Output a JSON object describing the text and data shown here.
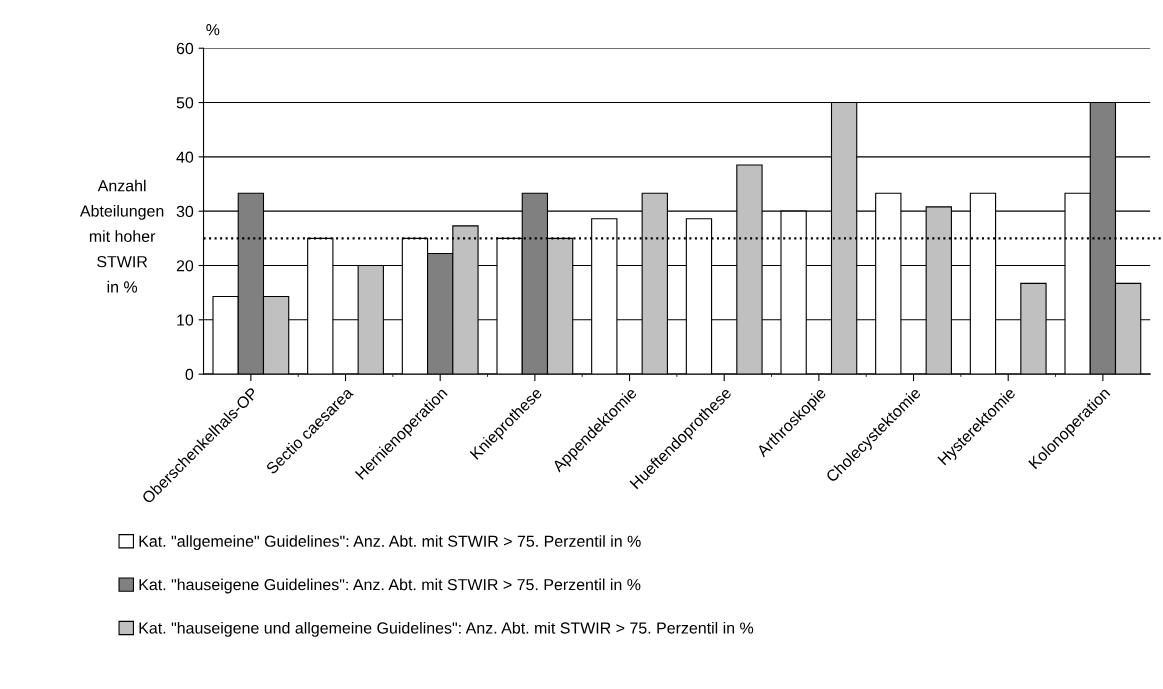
{
  "chart_data": {
    "type": "bar",
    "ylabel": "Anzahl\nAbteilungen\nmit hoher\nSTWIR\nin %",
    "annotations": [
      "%"
    ],
    "categories": [
      "Oberschenkelhals-OP",
      "Sectio caesarea",
      "Hernienoperation",
      "Knieprothese",
      "Appendektomie",
      "Hueftendoprothese",
      "Arthroskopie",
      "Cholecystektomie",
      "Hysterektomie",
      "Kolonoperation"
    ],
    "series": [
      {
        "name": "Kat. \"allgemeine\" Guidelines\": Anz. Abt. mit STWIR > 75. Perzentil in %",
        "color": "#ffffff",
        "values": [
          14.3,
          25,
          25,
          25,
          28.6,
          28.6,
          30,
          33.3,
          33.3,
          33.3
        ]
      },
      {
        "name": "Kat. \"hauseigene Guidelines\": Anz. Abt. mit STWIR > 75. Perzentil in %",
        "color": "#808080",
        "values": [
          33.3,
          null,
          22.2,
          33.3,
          null,
          null,
          null,
          null,
          null,
          50
        ]
      },
      {
        "name": "Kat. \"hauseigene und allgemeine Guidelines\": Anz. Abt. mit STWIR > 75. Perzentil in %",
        "color": "#c0c0c0",
        "values": [
          14.3,
          20,
          27.3,
          25,
          33.3,
          38.5,
          50,
          30.8,
          16.7,
          16.7
        ]
      }
    ],
    "ylim": [
      0,
      60
    ],
    "yticks": [
      0,
      10,
      20,
      30,
      40,
      50,
      60
    ],
    "ref_lines": [
      {
        "axis": "y",
        "value": 25,
        "color": "#000000",
        "line_style": "dotted"
      }
    ],
    "grid": "y",
    "legend": "bottom"
  }
}
